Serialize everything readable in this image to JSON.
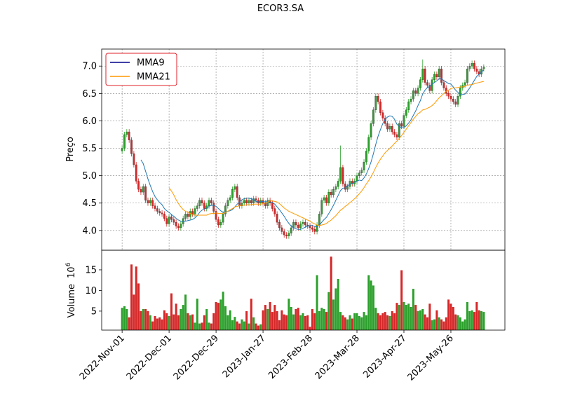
{
  "chart_data": {
    "type": "candlestick",
    "title": "ECOR3.SA",
    "ylabel": "Preço",
    "volume_label": "Volume",
    "volume_offset": {
      "base": "10",
      "exponent": "6"
    },
    "legend": "upper left",
    "grid": true,
    "up_color": "#2ca02c",
    "down_color": "#d62728",
    "xlim": [
      -8.7,
      163
    ],
    "xticks": [
      {
        "value": 0,
        "label": "2022-Nov-01"
      },
      {
        "value": 20,
        "label": "2022-Dec-01"
      },
      {
        "value": 40,
        "label": "2022-Dec-29"
      },
      {
        "value": 60,
        "label": "2023-Jan-27"
      },
      {
        "value": 80,
        "label": "2023-Feb-28"
      },
      {
        "value": 100,
        "label": "2023-Mar-28"
      },
      {
        "value": 120,
        "label": "2023-Apr-27"
      },
      {
        "value": 140,
        "label": "2023-May-26"
      }
    ],
    "ylim": [
      3.64,
      7.31
    ],
    "yticks": [
      {
        "value": 4,
        "label": "4.0"
      },
      {
        "value": 4.5,
        "label": "4.5"
      },
      {
        "value": 5,
        "label": "5.0"
      },
      {
        "value": 5.5,
        "label": "5.5"
      },
      {
        "value": 6,
        "label": "6.0"
      },
      {
        "value": 6.5,
        "label": "6.5"
      },
      {
        "value": 7,
        "label": "7.0"
      }
    ],
    "volume_ylim": [
      0.4,
      19.75
    ],
    "volume_yticks": [
      5,
      10,
      15
    ],
    "open": [
      5.45,
      5.5,
      5.75,
      5.8,
      5.65,
      5.4,
      5.2,
      4.9,
      4.75,
      4.7,
      4.8,
      4.55,
      4.5,
      4.55,
      4.45,
      4.4,
      4.35,
      4.32,
      4.3,
      4.22,
      4.12,
      4.25,
      4.2,
      4.15,
      4.08,
      4.05,
      4.12,
      4.22,
      4.3,
      4.25,
      4.35,
      4.3,
      4.4,
      4.45,
      4.55,
      4.5,
      4.4,
      4.45,
      4.55,
      4.5,
      4.35,
      4.2,
      4.1,
      4.15,
      4.3,
      4.45,
      4.55,
      4.6,
      4.75,
      4.8,
      4.6,
      4.45,
      4.5,
      4.55,
      4.5,
      4.55,
      4.5,
      4.58,
      4.55,
      4.5,
      4.55,
      4.5,
      4.45,
      4.55,
      4.5,
      4.4,
      4.3,
      4.15,
      4.05,
      3.98,
      3.92,
      3.9,
      3.95,
      4.05,
      4.15,
      4.1,
      4.05,
      4.12,
      4.15,
      4.1,
      4.08,
      4.05,
      4.02,
      3.98,
      4.1,
      4.3,
      4.55,
      4.6,
      4.5,
      4.7,
      4.65,
      4.75,
      4.8,
      4.9,
      5.15,
      4.85,
      4.75,
      4.8,
      4.9,
      4.85,
      4.9,
      5.0,
      5.05,
      5.1,
      5.25,
      5.45,
      5.7,
      5.95,
      6.2,
      6.45,
      6.35,
      6.15,
      6.05,
      5.95,
      5.85,
      5.9,
      5.8,
      5.75,
      5.7,
      5.95,
      5.9,
      6.1,
      6.2,
      6.35,
      6.4,
      6.55,
      6.5,
      6.6,
      6.75,
      6.95,
      6.7,
      6.65,
      6.55,
      6.75,
      6.85,
      6.8,
      6.95,
      6.7,
      6.6,
      6.5,
      6.45,
      6.4,
      6.35,
      6.3,
      6.45,
      6.6,
      6.65,
      6.7,
      6.95,
      7.0,
      7.05,
      6.95,
      6.9,
      6.85,
      6.95
    ],
    "high": [
      5.55,
      5.8,
      5.85,
      5.85,
      5.7,
      5.45,
      5.25,
      4.95,
      4.8,
      4.85,
      4.85,
      4.6,
      4.6,
      4.6,
      4.5,
      4.45,
      4.4,
      4.37,
      4.35,
      4.27,
      4.3,
      4.3,
      4.25,
      4.2,
      4.13,
      4.17,
      4.27,
      4.35,
      4.35,
      4.4,
      4.4,
      4.45,
      4.5,
      4.6,
      4.6,
      4.55,
      4.5,
      4.6,
      4.6,
      4.55,
      4.4,
      4.25,
      4.2,
      4.35,
      4.5,
      4.6,
      4.65,
      4.8,
      4.85,
      4.85,
      4.65,
      4.55,
      4.6,
      4.6,
      4.6,
      4.6,
      4.63,
      4.63,
      4.6,
      4.6,
      4.6,
      4.55,
      4.6,
      4.6,
      4.55,
      4.45,
      4.35,
      4.2,
      4.1,
      4.03,
      3.97,
      4.0,
      4.1,
      4.2,
      4.2,
      4.15,
      4.17,
      4.2,
      4.2,
      4.15,
      4.13,
      4.1,
      4.07,
      4.15,
      4.35,
      4.6,
      4.65,
      4.65,
      4.75,
      4.75,
      4.8,
      4.85,
      4.95,
      5.55,
      5.2,
      4.9,
      4.85,
      4.95,
      4.95,
      4.95,
      5.05,
      5.1,
      5.15,
      5.3,
      5.5,
      5.75,
      6.0,
      6.25,
      6.5,
      6.5,
      6.4,
      6.2,
      6.1,
      6.0,
      5.95,
      5.95,
      5.85,
      5.8,
      6.0,
      6.0,
      6.15,
      6.25,
      6.4,
      6.45,
      6.6,
      6.6,
      6.65,
      6.8,
      7.12,
      7.0,
      6.75,
      6.7,
      6.8,
      6.9,
      6.9,
      7.0,
      7.0,
      6.75,
      6.65,
      6.55,
      6.5,
      6.45,
      6.4,
      6.5,
      6.65,
      6.7,
      6.75,
      7.0,
      7.05,
      7.1,
      7.1,
      7.0,
      6.95,
      7.0,
      7.03
    ],
    "low": [
      5.4,
      5.45,
      5.7,
      5.6,
      5.35,
      5.15,
      4.85,
      4.7,
      4.65,
      4.65,
      4.5,
      4.45,
      4.45,
      4.4,
      4.35,
      4.3,
      4.27,
      4.25,
      4.17,
      4.07,
      4.07,
      4.15,
      4.1,
      4.03,
      4.0,
      4.0,
      4.07,
      4.17,
      4.2,
      4.2,
      4.25,
      4.25,
      4.35,
      4.4,
      4.45,
      4.35,
      4.35,
      4.4,
      4.45,
      4.3,
      4.15,
      4.05,
      4.05,
      4.1,
      4.25,
      4.4,
      4.5,
      4.55,
      4.7,
      4.55,
      4.4,
      4.4,
      4.45,
      4.45,
      4.45,
      4.45,
      4.45,
      4.5,
      4.45,
      4.45,
      4.45,
      4.4,
      4.4,
      4.45,
      4.35,
      4.25,
      4.1,
      4.0,
      3.93,
      3.87,
      3.85,
      3.85,
      3.9,
      4.0,
      4.05,
      4.0,
      4.0,
      4.07,
      4.05,
      4.03,
      4.0,
      3.97,
      3.93,
      3.93,
      4.05,
      4.25,
      4.5,
      4.45,
      4.45,
      4.6,
      4.6,
      4.7,
      4.75,
      4.85,
      4.8,
      4.7,
      4.7,
      4.75,
      4.8,
      4.8,
      4.85,
      4.95,
      5.0,
      5.05,
      5.2,
      5.4,
      5.65,
      5.9,
      6.15,
      6.3,
      6.1,
      6.0,
      5.9,
      5.8,
      5.8,
      5.75,
      5.7,
      5.65,
      5.65,
      5.85,
      5.85,
      6.05,
      6.15,
      6.3,
      6.35,
      6.45,
      6.45,
      6.55,
      6.7,
      6.65,
      6.6,
      6.5,
      6.5,
      6.7,
      6.75,
      6.75,
      6.65,
      6.55,
      6.45,
      6.4,
      6.35,
      6.3,
      6.25,
      6.25,
      6.4,
      6.55,
      6.6,
      6.65,
      6.9,
      6.95,
      6.9,
      6.85,
      6.8,
      6.8,
      6.9
    ],
    "close": [
      5.5,
      5.75,
      5.8,
      5.65,
      5.4,
      5.2,
      4.9,
      4.75,
      4.7,
      4.8,
      4.55,
      4.5,
      4.55,
      4.45,
      4.4,
      4.35,
      4.32,
      4.3,
      4.22,
      4.12,
      4.25,
      4.2,
      4.15,
      4.08,
      4.05,
      4.12,
      4.22,
      4.3,
      4.25,
      4.35,
      4.3,
      4.4,
      4.45,
      4.55,
      4.5,
      4.4,
      4.45,
      4.55,
      4.5,
      4.35,
      4.2,
      4.1,
      4.15,
      4.3,
      4.45,
      4.55,
      4.6,
      4.75,
      4.8,
      4.6,
      4.45,
      4.5,
      4.55,
      4.5,
      4.55,
      4.5,
      4.58,
      4.55,
      4.5,
      4.55,
      4.5,
      4.45,
      4.55,
      4.5,
      4.4,
      4.3,
      4.15,
      4.05,
      3.98,
      3.92,
      3.9,
      3.95,
      4.05,
      4.15,
      4.1,
      4.05,
      4.12,
      4.15,
      4.1,
      4.08,
      4.05,
      4.02,
      3.98,
      4.1,
      4.3,
      4.55,
      4.6,
      4.5,
      4.7,
      4.65,
      4.75,
      4.8,
      4.9,
      5.15,
      4.85,
      4.75,
      4.8,
      4.9,
      4.85,
      4.9,
      5.0,
      5.05,
      5.1,
      5.25,
      5.45,
      5.7,
      5.95,
      6.2,
      6.45,
      6.35,
      6.15,
      6.05,
      5.95,
      5.85,
      5.9,
      5.8,
      5.75,
      5.7,
      5.95,
      5.9,
      6.1,
      6.2,
      6.35,
      6.4,
      6.55,
      6.5,
      6.6,
      6.75,
      6.95,
      6.7,
      6.65,
      6.55,
      6.75,
      6.85,
      6.8,
      6.95,
      6.7,
      6.6,
      6.5,
      6.45,
      6.4,
      6.35,
      6.3,
      6.45,
      6.6,
      6.65,
      6.7,
      6.95,
      7.0,
      7.05,
      6.95,
      6.9,
      6.85,
      6.95,
      6.98
    ],
    "volume": [
      5.8,
      6.2,
      5.5,
      3.5,
      16.3,
      9.0,
      15.8,
      11.7,
      5.0,
      5.5,
      5.5,
      5.0,
      4.0,
      2.5,
      3.8,
      3.2,
      3.5,
      3.0,
      5.2,
      4.5,
      3.8,
      9.3,
      4.2,
      6.8,
      4.0,
      5.5,
      6.5,
      9.0,
      4.5,
      4.0,
      4.2,
      2.2,
      8.0,
      2.0,
      2.2,
      4.0,
      5.5,
      2.2,
      2.0,
      4.5,
      7.2,
      7.0,
      7.8,
      9.7,
      6.2,
      4.0,
      5.2,
      2.8,
      3.6,
      2.5,
      2.0,
      3.0,
      2.5,
      5.0,
      2.0,
      8.0,
      3.5,
      2.0,
      1.5,
      1.8,
      5.2,
      6.5,
      5.5,
      7.2,
      4.8,
      6.5,
      5.0,
      2.8,
      5.2,
      4.2,
      4.0,
      8.0,
      6.0,
      4.2,
      5.5,
      5.8,
      4.0,
      4.5,
      3.8,
      4.0,
      1.2,
      5.5,
      4.5,
      13.7,
      5.0,
      5.8,
      5.5,
      4.8,
      9.6,
      18.2,
      7.8,
      10.5,
      12.8,
      4.8,
      4.0,
      3.5,
      3.0,
      4.0,
      3.2,
      4.5,
      4.5,
      3.8,
      3.5,
      4.8,
      4.0,
      13.7,
      12.4,
      11.2,
      5.8,
      4.5,
      4.0,
      4.5,
      4.8,
      4.0,
      3.8,
      5.0,
      4.5,
      7.0,
      6.5,
      14.9,
      7.2,
      6.5,
      6.8,
      6.0,
      10.4,
      6.5,
      5.0,
      5.2,
      5.5,
      4.2,
      3.5,
      6.8,
      2.8,
      3.0,
      5.2,
      3.5,
      3.0,
      2.5,
      3.5,
      7.8,
      6.8,
      6.0,
      4.2,
      4.0,
      3.5,
      2.5,
      3.0,
      7.2,
      5.0,
      5.2,
      4.8,
      7.2,
      5.2,
      5.0,
      4.8
    ],
    "series": [
      {
        "name": "MMA9",
        "color": "#1f77b4",
        "values": [
          null,
          null,
          null,
          null,
          null,
          null,
          null,
          null,
          5.29,
          5.22,
          5.08,
          4.94,
          4.82,
          4.71,
          4.62,
          4.56,
          4.51,
          4.47,
          4.4,
          4.36,
          4.33,
          4.29,
          4.26,
          4.22,
          4.19,
          4.17,
          4.16,
          4.17,
          4.18,
          4.19,
          4.2,
          4.23,
          4.27,
          4.33,
          4.37,
          4.39,
          4.41,
          4.44,
          4.46,
          4.46,
          4.44,
          4.4,
          4.36,
          4.33,
          4.34,
          4.35,
          4.36,
          4.38,
          4.43,
          4.48,
          4.52,
          4.56,
          4.58,
          4.59,
          4.59,
          4.58,
          4.56,
          4.53,
          4.52,
          4.53,
          4.53,
          4.52,
          4.53,
          4.52,
          4.51,
          4.48,
          4.43,
          4.38,
          4.32,
          4.26,
          4.19,
          4.13,
          4.08,
          4.05,
          4.03,
          4.02,
          4.02,
          4.04,
          4.06,
          4.08,
          4.09,
          4.09,
          4.07,
          4.07,
          4.1,
          4.15,
          4.2,
          4.24,
          4.31,
          4.38,
          4.46,
          4.55,
          4.64,
          4.73,
          4.77,
          4.78,
          4.82,
          4.84,
          4.86,
          4.88,
          4.9,
          4.92,
          4.91,
          4.96,
          5.03,
          5.13,
          5.25,
          5.4,
          5.57,
          5.72,
          5.84,
          5.95,
          6.03,
          6.07,
          6.09,
          6.08,
          6.03,
          5.94,
          5.9,
          5.87,
          5.88,
          5.91,
          5.96,
          6.02,
          6.1,
          6.18,
          6.28,
          6.37,
          6.49,
          6.56,
          6.61,
          6.63,
          6.67,
          6.7,
          6.73,
          6.77,
          6.77,
          6.73,
          6.71,
          6.68,
          6.67,
          6.62,
          6.56,
          6.52,
          6.48,
          6.48,
          6.49,
          6.54,
          6.6,
          6.67,
          6.74,
          6.81,
          6.85,
          6.89,
          6.93
        ]
      },
      {
        "name": "MMA21",
        "color": "#ff9900",
        "values": [
          null,
          null,
          null,
          null,
          null,
          null,
          null,
          null,
          null,
          null,
          null,
          null,
          null,
          null,
          null,
          null,
          null,
          null,
          null,
          null,
          4.78,
          4.72,
          4.65,
          4.56,
          4.49,
          4.43,
          4.38,
          4.35,
          4.33,
          4.31,
          4.29,
          4.28,
          4.28,
          4.28,
          4.28,
          4.28,
          4.28,
          4.3,
          4.31,
          4.31,
          4.32,
          4.31,
          4.31,
          4.31,
          4.33,
          4.35,
          4.38,
          4.4,
          4.43,
          4.44,
          4.45,
          4.46,
          4.46,
          4.47,
          4.47,
          4.47,
          4.48,
          4.48,
          4.48,
          4.48,
          4.49,
          4.5,
          4.52,
          4.54,
          4.54,
          4.53,
          4.52,
          4.49,
          4.45,
          4.41,
          4.38,
          4.35,
          4.33,
          4.31,
          4.29,
          4.27,
          4.25,
          4.23,
          4.21,
          4.19,
          4.17,
          4.14,
          4.12,
          4.1,
          4.09,
          4.1,
          4.11,
          4.13,
          4.16,
          4.19,
          4.23,
          4.27,
          4.32,
          4.37,
          4.4,
          4.44,
          4.47,
          4.51,
          4.54,
          4.58,
          4.62,
          4.67,
          4.72,
          4.78,
          4.85,
          4.91,
          4.98,
          5.06,
          5.15,
          5.23,
          5.3,
          5.36,
          5.42,
          5.46,
          5.5,
          5.54,
          5.59,
          5.63,
          5.68,
          5.73,
          5.79,
          5.85,
          5.91,
          5.97,
          6.03,
          6.08,
          6.13,
          6.16,
          6.2,
          6.21,
          6.23,
          6.25,
          6.28,
          6.32,
          6.37,
          6.42,
          6.46,
          6.5,
          6.54,
          6.56,
          6.59,
          6.6,
          6.6,
          6.61,
          6.62,
          6.62,
          6.63,
          6.65,
          6.66,
          6.66,
          6.68,
          6.69,
          6.7,
          6.71,
          6.72
        ]
      }
    ]
  }
}
